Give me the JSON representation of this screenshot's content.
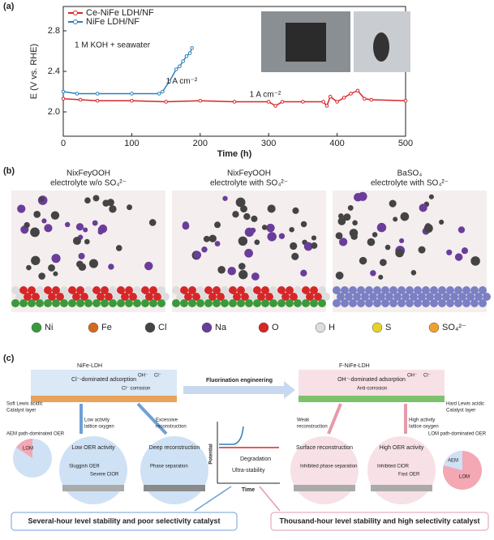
{
  "chart_data": {
    "type": "line",
    "panel_label": "(a)",
    "x_label": "Time (h)",
    "y_label": "E (V vs. RHE)",
    "xlim": [
      0,
      500
    ],
    "xticks": [
      0,
      100,
      200,
      300,
      400,
      500
    ],
    "ylim": [
      1.76,
      3.04
    ],
    "yticks": [
      {
        "value": 2.0,
        "label": "2.0"
      },
      {
        "value": 2.4,
        "label": "2.4"
      },
      {
        "value": 2.8,
        "label": "2.8"
      }
    ],
    "legend": "upper left",
    "annotations": [
      "1 M KOH + seawater",
      "1 A cm⁻²",
      "1 A cm⁻²"
    ],
    "series": [
      {
        "name": "Ce-NiFe LDH/NF",
        "color": "#d62728",
        "x": [
          0,
          25,
          50,
          100,
          150,
          200,
          250,
          300,
          310,
          320,
          350,
          380,
          385,
          390,
          400,
          410,
          420,
          430,
          440,
          450,
          500
        ],
        "values": [
          2.13,
          2.12,
          2.11,
          2.11,
          2.1,
          2.11,
          2.1,
          2.1,
          2.06,
          2.1,
          2.1,
          2.1,
          2.06,
          2.15,
          2.1,
          2.14,
          2.18,
          2.21,
          2.13,
          2.12,
          2.11
        ]
      },
      {
        "name": "NiFe LDH/NF",
        "color": "#2e7fb8",
        "x": [
          0,
          20,
          50,
          100,
          140,
          145,
          155,
          165,
          170,
          175,
          180,
          185,
          188
        ],
        "values": [
          2.2,
          2.18,
          2.18,
          2.18,
          2.18,
          2.2,
          2.3,
          2.42,
          2.45,
          2.5,
          2.55,
          2.58,
          2.63
        ]
      }
    ]
  },
  "panel_b": {
    "label": "(b)",
    "titles": [
      [
        "NixFeyOOH",
        "electrolyte w/o SO₄²⁻"
      ],
      [
        "NixFeyOOH",
        "electrolyte with SO₄²⁻"
      ],
      [
        "BaSO₄",
        "electrolyte with SO₄²⁻"
      ]
    ],
    "legend": [
      {
        "label": "Ni",
        "color": "#3a9a3a"
      },
      {
        "label": "Fe",
        "color": "#d2691e"
      },
      {
        "label": "Cl",
        "color": "#444444"
      },
      {
        "label": "Na",
        "color": "#6a3d9a"
      },
      {
        "label": "O",
        "color": "#d62728"
      },
      {
        "label": "H",
        "color": "#dddddd"
      },
      {
        "label": "S",
        "color": "#e6d12a"
      },
      {
        "label": "SO₄²⁻",
        "color": "#f0a030"
      }
    ]
  },
  "panel_c": {
    "label": "(c)",
    "left_title": "NiFe-LDH",
    "right_title": "F-NiFe-LDH",
    "oh": "OH⁻",
    "cl": "Cl⁻",
    "left_adsorption": "Cl⁻-dominated adsorption",
    "left_corrosion": "Cl⁻ corrosion",
    "left_layer": [
      "Soft Lewis acidic",
      "Catalyst layer"
    ],
    "arrow": "Fluorination engineering",
    "right_adsorption": "OH⁻-dominated adsorption",
    "right_corrosion": "Anti-corrosion",
    "right_layer": [
      "Hard Lewis acidic",
      "Catalyst layer"
    ],
    "branches": [
      [
        "Low activity",
        "lattice oxygen"
      ],
      [
        "Excessive",
        "reconstruction"
      ],
      [
        "Weak",
        "reconstruction"
      ],
      [
        "High activity",
        "lattice oxygen"
      ]
    ],
    "aem_path": "AEM path-dominated OER",
    "lom_path": "LOM path-dominated OER",
    "lom": "LOM",
    "aem": "AEM",
    "circles": [
      {
        "title": "Low OER activity",
        "notes": [
          "Sluggish OER",
          "Severe ClOR"
        ]
      },
      {
        "title": "Deep reconstruction",
        "notes": [
          "Phase separation"
        ]
      },
      {
        "title": "Surface reconstruction",
        "notes": [
          "Inhibited phase separation"
        ]
      },
      {
        "title": "High OER activity",
        "notes": [
          "Inhibited ClOR",
          "Fast OER"
        ]
      }
    ],
    "graph": {
      "y_label": "Potential",
      "x_label": "Time",
      "degradation": "Degradation",
      "stability": "Ultra-stability"
    },
    "bottom_left": "Several-hour level stability and poor selectivity catalyst",
    "bottom_right": "Thousand-hour level stability and high selectivity catalyst"
  }
}
